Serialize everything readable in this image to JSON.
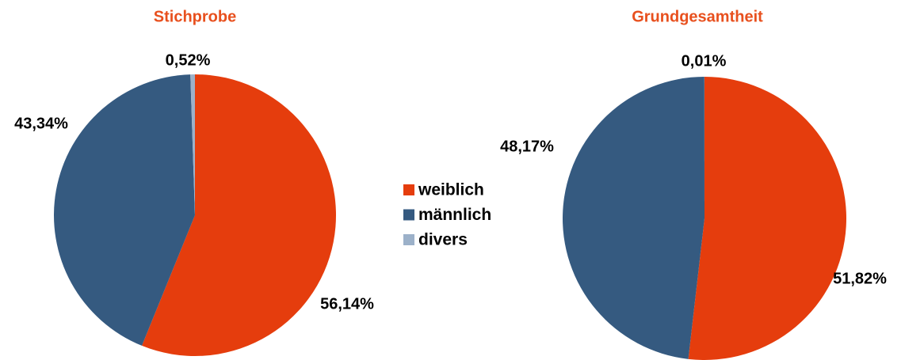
{
  "chart_data": [
    {
      "type": "pie",
      "title": "Stichprobe",
      "categories": [
        "weiblich",
        "männlich",
        "divers"
      ],
      "values": [
        56.14,
        43.34,
        0.52
      ],
      "value_labels": [
        "56,14%",
        "43,34%",
        "0,52%"
      ],
      "colors": [
        "#e53d0d",
        "#355a80",
        "#9cb1c9"
      ]
    },
    {
      "type": "pie",
      "title": "Grundgesamtheit",
      "categories": [
        "weiblich",
        "männlich",
        "divers"
      ],
      "values": [
        51.82,
        48.17,
        0.01
      ],
      "value_labels": [
        "51,82%",
        "48,17%",
        "0,01%"
      ],
      "colors": [
        "#e53d0d",
        "#355a80",
        "#9cb1c9"
      ]
    }
  ]
}
